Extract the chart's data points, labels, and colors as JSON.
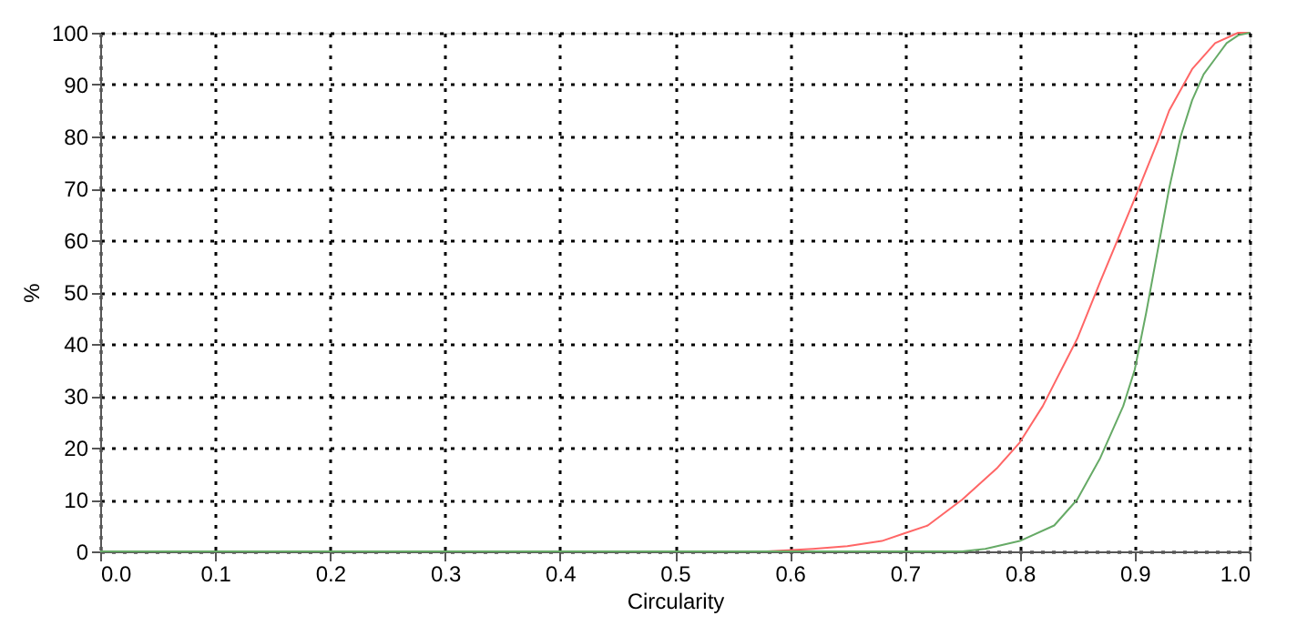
{
  "chart_data": {
    "type": "line",
    "xlabel": "Circularity",
    "ylabel": "%",
    "xlim": [
      0,
      1
    ],
    "ylim": [
      0,
      100
    ],
    "xticks": [
      {
        "value": 0,
        "label": "0.0"
      },
      {
        "value": 0.1,
        "label": "0.1"
      },
      {
        "value": 0.2,
        "label": "0.2"
      },
      {
        "value": 0.3,
        "label": "0.3"
      },
      {
        "value": 0.4,
        "label": "0.4"
      },
      {
        "value": 0.5,
        "label": "0.5"
      },
      {
        "value": 0.6,
        "label": "0.6"
      },
      {
        "value": 0.7,
        "label": "0.7"
      },
      {
        "value": 0.8,
        "label": "0.8"
      },
      {
        "value": 0.9,
        "label": "0.9"
      },
      {
        "value": 1,
        "label": "1.0"
      }
    ],
    "yticks": [
      0,
      10,
      20,
      30,
      40,
      50,
      60,
      70,
      80,
      90,
      100
    ],
    "grid": true,
    "marker": "none",
    "line_style": "solid",
    "series": [
      {
        "color": "#ff6666",
        "x": [
          0,
          0.58,
          0.62,
          0.65,
          0.68,
          0.7,
          0.72,
          0.75,
          0.78,
          0.8,
          0.82,
          0.85,
          0.87,
          0.9,
          0.92,
          0.93,
          0.95,
          0.97,
          0.99,
          1.0
        ],
        "values": [
          0,
          0,
          0.5,
          1,
          2,
          3.5,
          5,
          10,
          16,
          21,
          28,
          41,
          52,
          68,
          79,
          85,
          93,
          98,
          100,
          100
        ]
      },
      {
        "color": "#66aa66",
        "x": [
          0,
          0.75,
          0.77,
          0.8,
          0.83,
          0.85,
          0.87,
          0.89,
          0.9,
          0.91,
          0.92,
          0.93,
          0.94,
          0.95,
          0.96,
          0.97,
          0.98,
          0.99,
          1.0
        ],
        "values": [
          0,
          0,
          0.5,
          2,
          5,
          10,
          18,
          28,
          35,
          46,
          58,
          70,
          80,
          87,
          92,
          95,
          98,
          99.5,
          100
        ]
      }
    ]
  }
}
